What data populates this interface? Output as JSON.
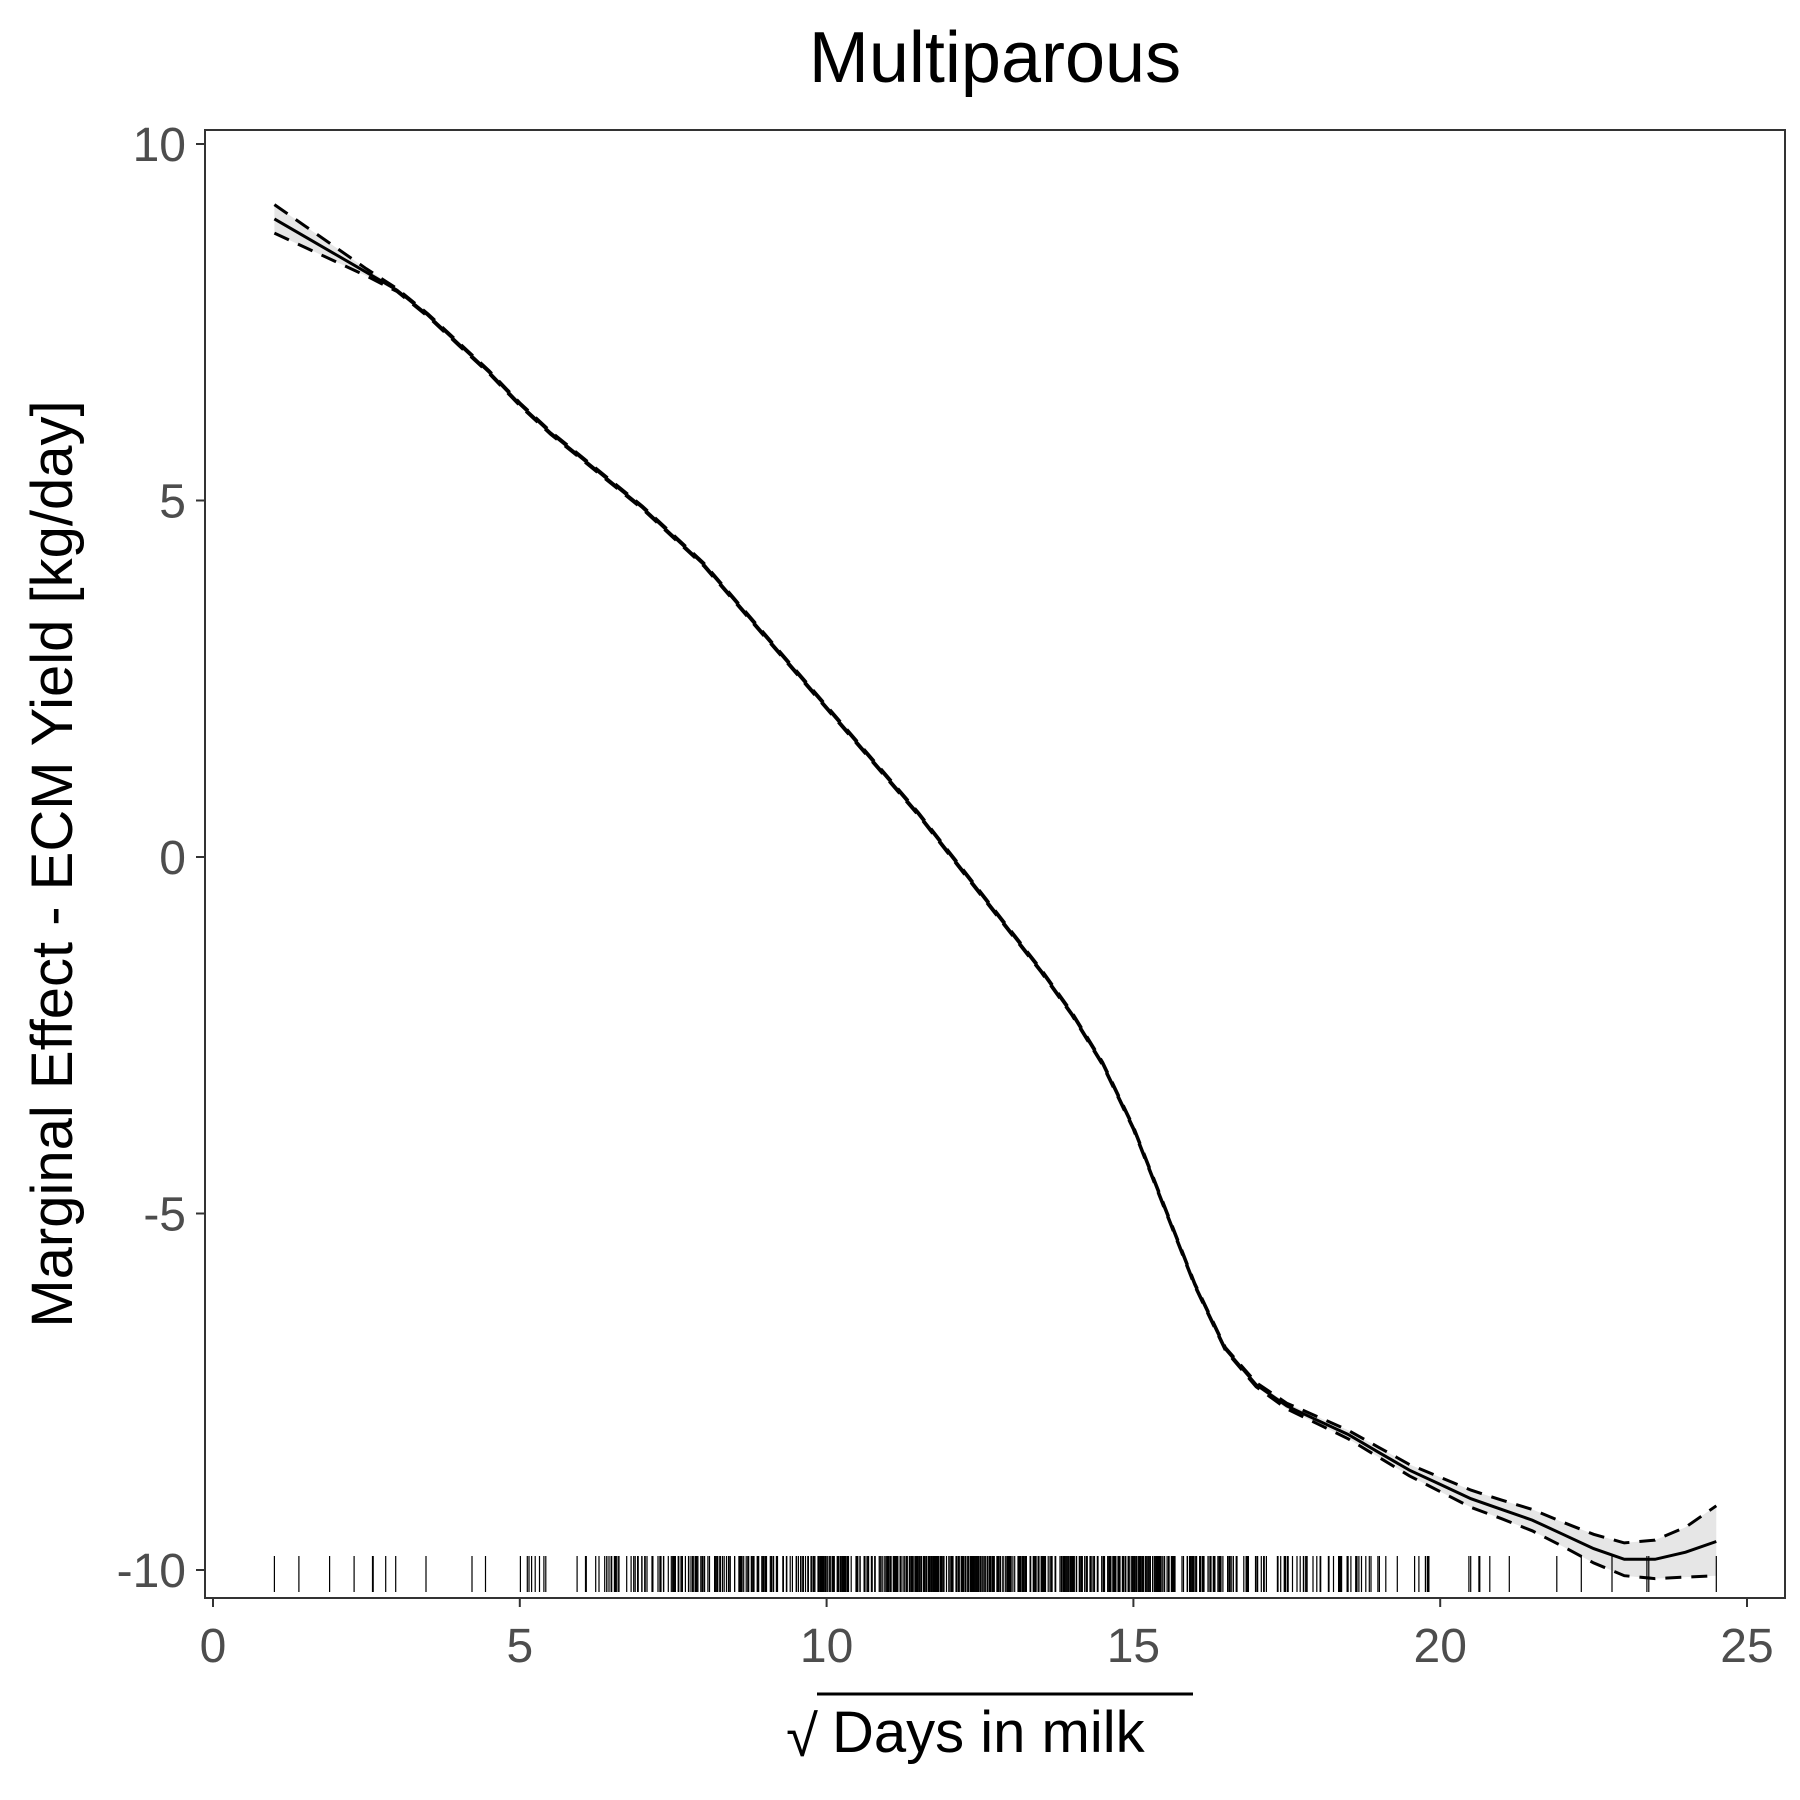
{
  "chart_data": {
    "type": "line",
    "title": "Multiparous",
    "xlabel": "Days in milk",
    "xlabel_prefix": "√",
    "ylabel": "Marginal Effect - ECM Yield [kg/day]",
    "xlim": [
      0,
      25
    ],
    "ylim": [
      -10,
      10
    ],
    "x_ticks": [
      0,
      5,
      10,
      15,
      20,
      25
    ],
    "y_ticks": [
      -10,
      -5,
      0,
      5,
      10
    ],
    "x_tick_labels": [
      "0",
      "5",
      "10",
      "15",
      "20",
      "25"
    ],
    "y_tick_labels": [
      "-10",
      "-5",
      "0",
      "5",
      "10"
    ],
    "grid": false,
    "legend": "none",
    "colors": {
      "line": "#000000",
      "ribbon": "#e6e6e6",
      "panel_border": "#333333",
      "tick_text": "#4d4d4d"
    },
    "series": [
      {
        "x": [
          1,
          1.5,
          2,
          2.5,
          3,
          3.5,
          4,
          4.5,
          5,
          5.5,
          6,
          6.5,
          7,
          7.5,
          8,
          8.5,
          9,
          9.5,
          10,
          10.5,
          11,
          11.5,
          12,
          12.5,
          13,
          13.5,
          14,
          14.5,
          15,
          15.5,
          16,
          16.5,
          17,
          17.5,
          18,
          18.5,
          19,
          19.5,
          20,
          20.5,
          21,
          21.5,
          22,
          22.5,
          23,
          23.5,
          24,
          24.5
        ],
        "y": [
          8.95,
          8.7,
          8.45,
          8.2,
          7.95,
          7.6,
          7.2,
          6.8,
          6.35,
          5.95,
          5.6,
          5.25,
          4.9,
          4.5,
          4.1,
          3.6,
          3.1,
          2.6,
          2.1,
          1.6,
          1.1,
          0.6,
          0.05,
          -0.5,
          -1.05,
          -1.6,
          -2.2,
          -2.9,
          -3.8,
          -4.9,
          -6.0,
          -6.9,
          -7.4,
          -7.7,
          -7.9,
          -8.1,
          -8.35,
          -8.6,
          -8.8,
          -9.0,
          -9.15,
          -9.3,
          -9.5,
          -9.7,
          -9.85,
          -9.85,
          -9.75,
          -9.6
        ]
      }
    ],
    "confidence_band": {
      "lower": [
        8.75,
        8.55,
        8.35,
        8.15,
        7.93,
        7.58,
        7.18,
        6.78,
        6.33,
        5.93,
        5.58,
        5.23,
        4.88,
        4.48,
        4.08,
        3.58,
        3.08,
        2.58,
        2.08,
        1.58,
        1.08,
        0.58,
        0.03,
        -0.52,
        -1.07,
        -1.62,
        -2.22,
        -2.92,
        -3.82,
        -4.92,
        -6.02,
        -6.92,
        -7.43,
        -7.74,
        -7.95,
        -8.16,
        -8.42,
        -8.68,
        -8.9,
        -9.12,
        -9.28,
        -9.45,
        -9.67,
        -9.9,
        -10.08,
        -10.12,
        -10.1,
        -10.08
      ],
      "upper": [
        9.15,
        8.85,
        8.55,
        8.25,
        7.97,
        7.62,
        7.22,
        6.82,
        6.37,
        5.97,
        5.62,
        5.27,
        4.92,
        4.52,
        4.12,
        3.62,
        3.12,
        2.62,
        2.12,
        1.62,
        1.12,
        0.62,
        0.07,
        -0.48,
        -1.03,
        -1.58,
        -2.18,
        -2.88,
        -3.78,
        -4.88,
        -5.98,
        -6.88,
        -7.37,
        -7.66,
        -7.85,
        -8.04,
        -8.28,
        -8.52,
        -8.7,
        -8.88,
        -9.02,
        -9.15,
        -9.33,
        -9.5,
        -9.62,
        -9.58,
        -9.4,
        -9.1
      ]
    },
    "rug_range": [
      1,
      24.5
    ]
  }
}
